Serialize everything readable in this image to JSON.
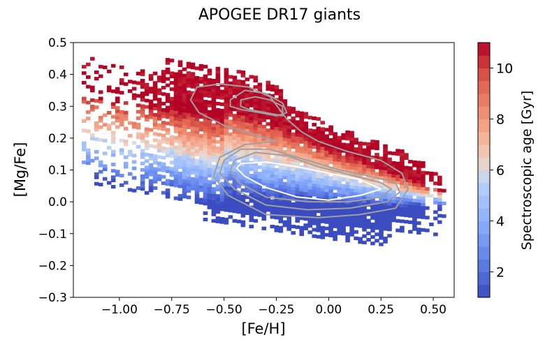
{
  "chart_data": {
    "type": "heatmap",
    "title": "APOGEE DR17 giants",
    "xlabel": "[Fe/H]",
    "ylabel": "[Mg/Fe]",
    "colorbar_label": "Spectroscopic age [Gyr]",
    "colormap": "coolwarm",
    "xlim": [
      -1.22,
      0.6
    ],
    "ylim": [
      -0.3,
      0.5
    ],
    "clim": [
      1,
      11
    ],
    "x_ticks": [
      -1.0,
      -0.75,
      -0.5,
      -0.25,
      0.0,
      0.25,
      0.5
    ],
    "x_tick_labels": [
      "−1.00",
      "−0.75",
      "−0.50",
      "−0.25",
      "0.00",
      "0.25",
      "0.50"
    ],
    "y_ticks": [
      -0.3,
      -0.2,
      -0.1,
      0.0,
      0.1,
      0.2,
      0.3,
      0.4,
      0.5
    ],
    "y_tick_labels": [
      "−0.3",
      "−0.2",
      "−0.1",
      "0.0",
      "0.1",
      "0.2",
      "0.3",
      "0.4",
      "0.5"
    ],
    "colorbar_ticks": [
      2,
      4,
      6,
      8,
      10
    ],
    "colorbar_tick_labels": [
      "2",
      "4",
      "6",
      "8",
      "10"
    ],
    "bin_size": {
      "feh": 0.02,
      "mgfe": 0.01
    },
    "age_model": {
      "description_components": [
        "age rises with [Mg/Fe]",
        "high-alpha sequence oldest"
      ],
      "high_alpha_sequence": [
        [
          -1.1,
          0.36
        ],
        [
          -0.7,
          0.31
        ],
        [
          -0.4,
          0.27
        ],
        [
          -0.2,
          0.22
        ],
        [
          0.0,
          0.16
        ],
        [
          0.2,
          0.11
        ],
        [
          0.4,
          0.06
        ],
        [
          0.52,
          0.03
        ]
      ],
      "low_alpha_sequence": [
        [
          -0.85,
          0.12
        ],
        [
          -0.6,
          0.09
        ],
        [
          -0.4,
          0.07
        ],
        [
          -0.2,
          0.05
        ],
        [
          0.0,
          0.03
        ],
        [
          0.2,
          0.015
        ],
        [
          0.4,
          0.0
        ],
        [
          0.55,
          -0.01
        ]
      ]
    },
    "contours": [
      {
        "level": "outer",
        "color": "#a0a0a0",
        "points": [
          [
            -0.63,
            0.36
          ],
          [
            -0.52,
            0.37
          ],
          [
            -0.38,
            0.36
          ],
          [
            -0.28,
            0.33
          ],
          [
            -0.2,
            0.26
          ],
          [
            -0.13,
            0.22
          ],
          [
            -0.05,
            0.19
          ],
          [
            0.08,
            0.16
          ],
          [
            0.25,
            0.13
          ],
          [
            0.35,
            0.09
          ],
          [
            0.38,
            0.04
          ],
          [
            0.32,
            -0.02
          ],
          [
            0.15,
            -0.04
          ],
          [
            -0.05,
            -0.05
          ],
          [
            -0.3,
            -0.04
          ],
          [
            -0.48,
            0.02
          ],
          [
            -0.55,
            0.08
          ],
          [
            -0.52,
            0.14
          ],
          [
            -0.4,
            0.18
          ],
          [
            -0.25,
            0.19
          ],
          [
            -0.35,
            0.21
          ],
          [
            -0.5,
            0.24
          ],
          [
            -0.62,
            0.28
          ],
          [
            -0.66,
            0.32
          ]
        ]
      },
      {
        "level": "middle",
        "color": "#a0a0a0",
        "points": [
          [
            -0.47,
            0.32
          ],
          [
            -0.4,
            0.35
          ],
          [
            -0.3,
            0.34
          ],
          [
            -0.22,
            0.31
          ],
          [
            -0.2,
            0.28
          ],
          [
            -0.25,
            0.27
          ],
          [
            -0.33,
            0.28
          ],
          [
            -0.42,
            0.29
          ],
          [
            -0.47,
            0.3
          ]
        ]
      },
      {
        "level": "middle",
        "color": "#a0a0a0",
        "points": [
          [
            -0.5,
            0.13
          ],
          [
            -0.42,
            0.165
          ],
          [
            -0.28,
            0.165
          ],
          [
            -0.1,
            0.13
          ],
          [
            0.05,
            0.1
          ],
          [
            0.2,
            0.08
          ],
          [
            0.32,
            0.06
          ],
          [
            0.34,
            0.03
          ],
          [
            0.28,
            0.0
          ],
          [
            0.1,
            -0.02
          ],
          [
            -0.1,
            -0.025
          ],
          [
            -0.3,
            -0.01
          ],
          [
            -0.45,
            0.04
          ],
          [
            -0.52,
            0.09
          ]
        ]
      },
      {
        "level": "inner",
        "color": "#a0a0a0",
        "points": [
          [
            -0.45,
            0.13
          ],
          [
            -0.35,
            0.155
          ],
          [
            -0.2,
            0.145
          ],
          [
            -0.05,
            0.11
          ],
          [
            0.1,
            0.085
          ],
          [
            0.25,
            0.06
          ],
          [
            0.3,
            0.04
          ],
          [
            0.25,
            0.015
          ],
          [
            0.1,
            0.0
          ],
          [
            -0.1,
            0.0
          ],
          [
            -0.3,
            0.015
          ],
          [
            -0.43,
            0.06
          ],
          [
            -0.47,
            0.1
          ]
        ]
      },
      {
        "level": "core",
        "color": "#ffffff",
        "points": [
          [
            -0.42,
            0.12
          ],
          [
            -0.3,
            0.125
          ],
          [
            -0.15,
            0.11
          ],
          [
            0.0,
            0.09
          ],
          [
            0.15,
            0.07
          ],
          [
            0.25,
            0.04
          ],
          [
            0.15,
            0.02
          ],
          [
            0.0,
            0.005
          ],
          [
            -0.15,
            0.015
          ],
          [
            -0.3,
            0.045
          ],
          [
            -0.4,
            0.08
          ],
          [
            -0.44,
            0.105
          ]
        ]
      },
      {
        "level": "core-hi",
        "color": "#a0a0a0",
        "points": [
          [
            -0.42,
            0.32
          ],
          [
            -0.35,
            0.33
          ],
          [
            -0.28,
            0.32
          ],
          [
            -0.22,
            0.3
          ],
          [
            -0.22,
            0.27
          ],
          [
            -0.3,
            0.28
          ],
          [
            -0.38,
            0.29
          ],
          [
            -0.42,
            0.3
          ]
        ]
      }
    ]
  }
}
